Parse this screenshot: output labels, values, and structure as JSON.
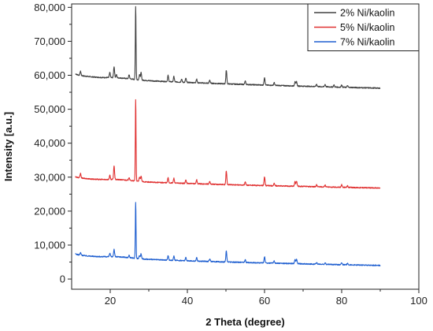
{
  "chart_data": {
    "type": "line",
    "xlabel": "2 Theta (degree)",
    "ylabel": "Intensity [a.u.]",
    "xlim": [
      10,
      100
    ],
    "ylim": [
      -3000,
      81000
    ],
    "x_ticks": [
      20,
      40,
      60,
      80,
      100
    ],
    "x_tick_labels": [
      "20",
      "40",
      "60",
      "80",
      "100"
    ],
    "y_ticks": [
      0,
      10000,
      20000,
      30000,
      40000,
      50000,
      60000,
      70000,
      80000
    ],
    "y_tick_labels": [
      "0",
      "10,000",
      "20,000",
      "30,000",
      "40,000",
      "50,000",
      "60,000",
      "70,000",
      "80,000"
    ],
    "grid": false,
    "legend_position": "top-right",
    "series": [
      {
        "name": "2% Ni/kaolin",
        "color": "#404040",
        "baseline_start": 60500,
        "baseline_end": 56200,
        "peaks": [
          [
            12.3,
            1200
          ],
          [
            19.9,
            1500
          ],
          [
            21.0,
            3300
          ],
          [
            21.6,
            900
          ],
          [
            24.9,
            1200
          ],
          [
            26.6,
            21500
          ],
          [
            27.6,
            1600
          ],
          [
            28.0,
            2200
          ],
          [
            35.0,
            1800
          ],
          [
            36.5,
            1600
          ],
          [
            38.5,
            900
          ],
          [
            39.6,
            1200
          ],
          [
            42.4,
            1100
          ],
          [
            45.8,
            900
          ],
          [
            50.1,
            4000
          ],
          [
            55.0,
            1000
          ],
          [
            60.0,
            2300
          ],
          [
            62.5,
            800
          ],
          [
            67.9,
            1200
          ],
          [
            68.3,
            1300
          ],
          [
            73.5,
            700
          ],
          [
            75.7,
            700
          ],
          [
            78.0,
            600
          ],
          [
            80.0,
            700
          ],
          [
            81.5,
            500
          ]
        ]
      },
      {
        "name": "5% Ni/kaolin",
        "color": "#e03030",
        "baseline_start": 30200,
        "baseline_end": 26800,
        "peaks": [
          [
            12.3,
            1300
          ],
          [
            19.9,
            1200
          ],
          [
            21.0,
            4000
          ],
          [
            24.9,
            900
          ],
          [
            26.6,
            24000
          ],
          [
            27.6,
            1200
          ],
          [
            28.0,
            1600
          ],
          [
            35.0,
            1500
          ],
          [
            36.5,
            1400
          ],
          [
            39.6,
            1000
          ],
          [
            42.4,
            1200
          ],
          [
            45.8,
            800
          ],
          [
            50.1,
            4000
          ],
          [
            55.0,
            900
          ],
          [
            60.0,
            2600
          ],
          [
            62.5,
            700
          ],
          [
            67.9,
            1300
          ],
          [
            68.3,
            1600
          ],
          [
            73.5,
            600
          ],
          [
            75.7,
            600
          ],
          [
            80.0,
            800
          ],
          [
            81.5,
            500
          ]
        ]
      },
      {
        "name": "7% Ni/kaolin",
        "color": "#1f5fd0",
        "baseline_start": 7500,
        "baseline_end": 4000,
        "peaks": [
          [
            12.3,
            700
          ],
          [
            19.9,
            1000
          ],
          [
            21.0,
            2200
          ],
          [
            24.9,
            700
          ],
          [
            26.6,
            16500
          ],
          [
            27.6,
            1000
          ],
          [
            28.0,
            1500
          ],
          [
            35.0,
            1300
          ],
          [
            36.5,
            1200
          ],
          [
            39.6,
            900
          ],
          [
            42.4,
            1000
          ],
          [
            45.8,
            700
          ],
          [
            50.1,
            3200
          ],
          [
            55.0,
            800
          ],
          [
            60.0,
            1800
          ],
          [
            62.5,
            600
          ],
          [
            67.9,
            1100
          ],
          [
            68.3,
            1400
          ],
          [
            73.5,
            500
          ],
          [
            75.7,
            500
          ],
          [
            80.0,
            600
          ],
          [
            81.5,
            400
          ]
        ]
      }
    ]
  }
}
